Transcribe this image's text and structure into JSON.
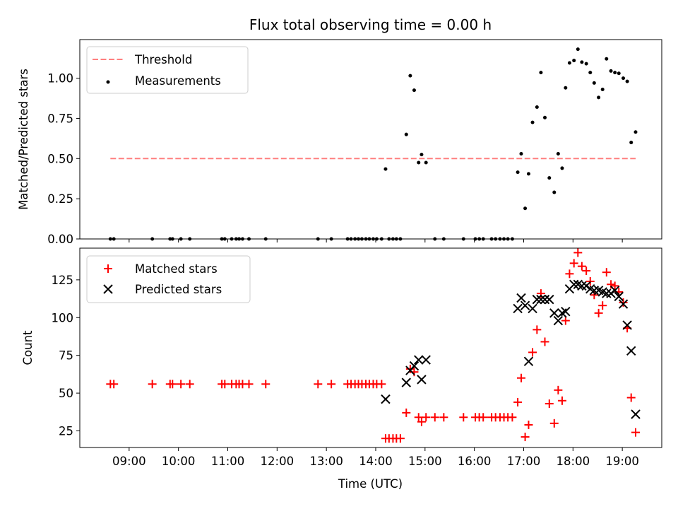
{
  "chart_data": [
    {
      "type": "scatter",
      "title": "Flux total observing time = 0.00 h",
      "ylabel": "Matched/Predicted stars",
      "xlabel": "",
      "ylim": [
        0,
        1.24
      ],
      "yticks": [
        "0.00",
        "0.25",
        "0.50",
        "0.75",
        "1.00"
      ],
      "ytick_values": [
        0,
        0.25,
        0.5,
        0.75,
        1.0
      ],
      "legend_position": "upper-left",
      "threshold": {
        "name": "Threshold",
        "value": 0.5,
        "x_start": 8.62,
        "x_end": 19.27,
        "color": "#ff7f7f"
      },
      "series": [
        {
          "name": "Measurements",
          "color": "#000000",
          "points": [
            [
              8.62,
              0
            ],
            [
              8.69,
              0
            ],
            [
              9.47,
              0
            ],
            [
              9.83,
              0
            ],
            [
              9.88,
              0
            ],
            [
              10.05,
              0
            ],
            [
              10.23,
              0
            ],
            [
              10.88,
              0
            ],
            [
              10.94,
              0
            ],
            [
              11.08,
              0
            ],
            [
              11.17,
              0
            ],
            [
              11.23,
              0
            ],
            [
              11.3,
              0
            ],
            [
              11.43,
              0
            ],
            [
              11.77,
              0
            ],
            [
              12.83,
              0
            ],
            [
              13.1,
              0
            ],
            [
              13.43,
              0
            ],
            [
              13.5,
              0
            ],
            [
              13.58,
              0
            ],
            [
              13.65,
              0
            ],
            [
              13.72,
              0
            ],
            [
              13.8,
              0
            ],
            [
              13.87,
              0
            ],
            [
              13.95,
              0
            ],
            [
              14.02,
              0
            ],
            [
              14.12,
              0
            ],
            [
              14.2,
              0.435
            ],
            [
              14.27,
              0
            ],
            [
              14.35,
              0
            ],
            [
              14.42,
              0
            ],
            [
              14.5,
              0
            ],
            [
              14.62,
              0.65
            ],
            [
              14.7,
              1.015
            ],
            [
              14.78,
              0.925
            ],
            [
              14.87,
              0.475
            ],
            [
              14.93,
              0.525
            ],
            [
              15.02,
              0.475
            ],
            [
              15.2,
              0
            ],
            [
              15.38,
              0
            ],
            [
              15.78,
              0
            ],
            [
              16.02,
              0
            ],
            [
              16.1,
              0
            ],
            [
              16.18,
              0
            ],
            [
              16.35,
              0
            ],
            [
              16.43,
              0
            ],
            [
              16.52,
              0
            ],
            [
              16.6,
              0
            ],
            [
              16.68,
              0
            ],
            [
              16.77,
              0
            ],
            [
              16.88,
              0.415
            ],
            [
              16.95,
              0.53
            ],
            [
              17.03,
              0.19
            ],
            [
              17.1,
              0.405
            ],
            [
              17.18,
              0.725
            ],
            [
              17.27,
              0.82
            ],
            [
              17.35,
              1.035
            ],
            [
              17.43,
              0.755
            ],
            [
              17.52,
              0.38
            ],
            [
              17.62,
              0.29
            ],
            [
              17.7,
              0.53
            ],
            [
              17.78,
              0.44
            ],
            [
              17.85,
              0.94
            ],
            [
              17.93,
              1.095
            ],
            [
              18.02,
              1.11
            ],
            [
              18.1,
              1.18
            ],
            [
              18.18,
              1.1
            ],
            [
              18.27,
              1.09
            ],
            [
              18.35,
              1.035
            ],
            [
              18.43,
              0.97
            ],
            [
              18.52,
              0.88
            ],
            [
              18.6,
              0.93
            ],
            [
              18.68,
              1.12
            ],
            [
              18.77,
              1.045
            ],
            [
              18.85,
              1.035
            ],
            [
              18.93,
              1.03
            ],
            [
              19.02,
              1.0
            ],
            [
              19.1,
              0.98
            ],
            [
              19.18,
              0.6
            ],
            [
              19.27,
              0.665
            ]
          ]
        }
      ]
    },
    {
      "type": "scatter",
      "title": "",
      "ylabel": "Count",
      "xlabel": "Time (UTC)",
      "ylim": [
        14,
        146
      ],
      "yticks": [
        "25",
        "50",
        "75",
        "100",
        "125"
      ],
      "ytick_values": [
        25,
        50,
        75,
        100,
        125
      ],
      "xlim": [
        8.0,
        19.8
      ],
      "xticks": [
        "09:00",
        "10:00",
        "11:00",
        "12:00",
        "13:00",
        "14:00",
        "15:00",
        "16:00",
        "17:00",
        "18:00",
        "19:00"
      ],
      "xtick_values": [
        9,
        10,
        11,
        12,
        13,
        14,
        15,
        16,
        17,
        18,
        19
      ],
      "legend_position": "upper-left",
      "series": [
        {
          "name": "Matched stars",
          "color": "#ff0000",
          "marker": "plus",
          "points": [
            [
              8.62,
              56
            ],
            [
              8.69,
              56
            ],
            [
              9.47,
              56
            ],
            [
              9.83,
              56
            ],
            [
              9.88,
              56
            ],
            [
              10.05,
              56
            ],
            [
              10.23,
              56
            ],
            [
              10.88,
              56
            ],
            [
              10.94,
              56
            ],
            [
              11.08,
              56
            ],
            [
              11.17,
              56
            ],
            [
              11.23,
              56
            ],
            [
              11.3,
              56
            ],
            [
              11.43,
              56
            ],
            [
              11.77,
              56
            ],
            [
              12.83,
              56
            ],
            [
              13.1,
              56
            ],
            [
              13.43,
              56
            ],
            [
              13.5,
              56
            ],
            [
              13.58,
              56
            ],
            [
              13.65,
              56
            ],
            [
              13.72,
              56
            ],
            [
              13.8,
              56
            ],
            [
              13.87,
              56
            ],
            [
              13.95,
              56
            ],
            [
              14.02,
              56
            ],
            [
              14.12,
              56
            ],
            [
              14.2,
              20
            ],
            [
              14.27,
              20
            ],
            [
              14.35,
              20
            ],
            [
              14.42,
              20
            ],
            [
              14.5,
              20
            ],
            [
              14.62,
              37
            ],
            [
              14.7,
              66
            ],
            [
              14.78,
              64
            ],
            [
              14.87,
              34
            ],
            [
              14.93,
              31
            ],
            [
              15.02,
              34
            ],
            [
              15.2,
              34
            ],
            [
              15.38,
              34
            ],
            [
              15.78,
              34
            ],
            [
              16.02,
              34
            ],
            [
              16.1,
              34
            ],
            [
              16.18,
              34
            ],
            [
              16.35,
              34
            ],
            [
              16.43,
              34
            ],
            [
              16.52,
              34
            ],
            [
              16.6,
              34
            ],
            [
              16.68,
              34
            ],
            [
              16.77,
              34
            ],
            [
              16.88,
              44
            ],
            [
              16.95,
              60
            ],
            [
              17.03,
              21
            ],
            [
              17.1,
              29
            ],
            [
              17.18,
              77
            ],
            [
              17.27,
              92
            ],
            [
              17.35,
              116
            ],
            [
              17.43,
              84
            ],
            [
              17.52,
              43
            ],
            [
              17.62,
              30
            ],
            [
              17.7,
              52
            ],
            [
              17.78,
              45
            ],
            [
              17.85,
              98
            ],
            [
              17.93,
              129
            ],
            [
              18.02,
              136
            ],
            [
              18.1,
              143
            ],
            [
              18.18,
              134
            ],
            [
              18.27,
              131
            ],
            [
              18.35,
              124
            ],
            [
              18.43,
              115
            ],
            [
              18.52,
              103
            ],
            [
              18.6,
              108
            ],
            [
              18.68,
              130
            ],
            [
              18.77,
              122
            ],
            [
              18.85,
              121
            ],
            [
              18.93,
              117
            ],
            [
              19.02,
              110
            ],
            [
              19.1,
              93
            ],
            [
              19.18,
              47
            ],
            [
              19.27,
              24
            ]
          ]
        },
        {
          "name": "Predicted stars",
          "color": "#000000",
          "marker": "x",
          "points": [
            [
              14.2,
              46
            ],
            [
              14.62,
              57
            ],
            [
              14.7,
              65
            ],
            [
              14.78,
              68
            ],
            [
              14.87,
              72
            ],
            [
              14.93,
              59
            ],
            [
              15.02,
              72
            ],
            [
              16.88,
              106
            ],
            [
              16.95,
              113
            ],
            [
              17.03,
              108
            ],
            [
              17.1,
              71
            ],
            [
              17.18,
              106
            ],
            [
              17.27,
              112
            ],
            [
              17.35,
              112
            ],
            [
              17.43,
              112
            ],
            [
              17.52,
              112
            ],
            [
              17.62,
              103
            ],
            [
              17.7,
              98
            ],
            [
              17.78,
              103
            ],
            [
              17.85,
              104
            ],
            [
              17.93,
              119
            ],
            [
              18.02,
              122
            ],
            [
              18.1,
              122
            ],
            [
              18.18,
              121
            ],
            [
              18.27,
              121
            ],
            [
              18.35,
              119
            ],
            [
              18.43,
              118
            ],
            [
              18.52,
              118
            ],
            [
              18.6,
              117
            ],
            [
              18.68,
              116
            ],
            [
              18.77,
              116
            ],
            [
              18.85,
              118
            ],
            [
              18.93,
              114
            ],
            [
              19.02,
              109
            ],
            [
              19.1,
              95
            ],
            [
              19.18,
              78
            ],
            [
              19.27,
              36
            ]
          ]
        }
      ]
    }
  ]
}
